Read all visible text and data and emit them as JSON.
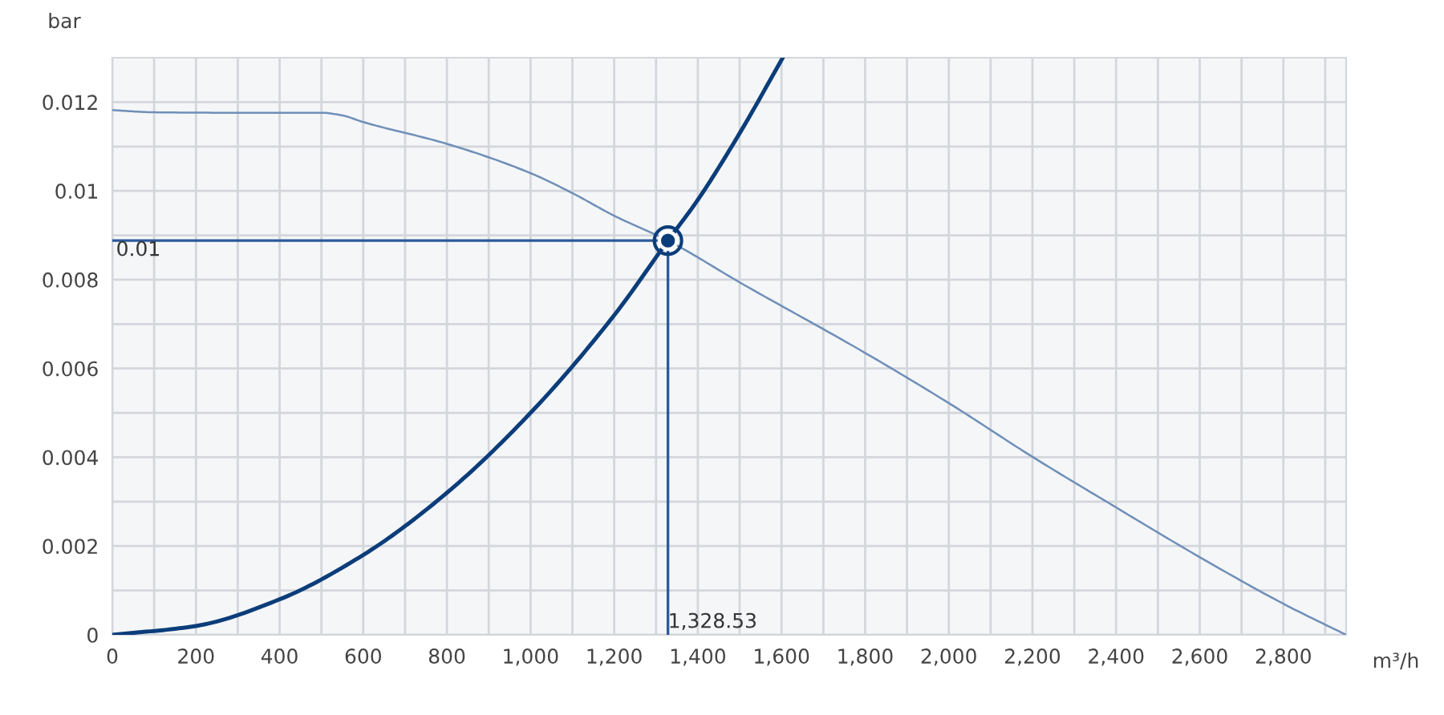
{
  "chart_data": {
    "type": "line",
    "ylabel": "bar",
    "xlabel": "m³/h",
    "grid": true,
    "xlim": [
      0,
      2950
    ],
    "ylim": [
      0,
      0.013
    ],
    "xticks": [
      0,
      {
        "value": 100,
        "label": null
      },
      200,
      {
        "value": 300,
        "label": null
      },
      400,
      {
        "value": 500,
        "label": null
      },
      600,
      {
        "value": 700,
        "label": null
      },
      800,
      {
        "value": 900,
        "label": null
      },
      {
        "value": 1000,
        "label": "1,000"
      },
      {
        "value": 1100,
        "label": null
      },
      {
        "value": 1200,
        "label": "1,200"
      },
      {
        "value": 1300,
        "label": null
      },
      {
        "value": 1400,
        "label": "1,400"
      },
      {
        "value": 1500,
        "label": null
      },
      {
        "value": 1600,
        "label": "1,600"
      },
      {
        "value": 1700,
        "label": null
      },
      {
        "value": 1800,
        "label": "1,800"
      },
      {
        "value": 1900,
        "label": null
      },
      {
        "value": 2000,
        "label": "2,000"
      },
      {
        "value": 2100,
        "label": null
      },
      {
        "value": 2200,
        "label": "2,200"
      },
      {
        "value": 2300,
        "label": null
      },
      {
        "value": 2400,
        "label": "2,400"
      },
      {
        "value": 2500,
        "label": null
      },
      {
        "value": 2600,
        "label": "2,600"
      },
      {
        "value": 2700,
        "label": null
      },
      {
        "value": 2800,
        "label": "2,800"
      },
      {
        "value": 2900,
        "label": null
      }
    ],
    "yticks": [
      0,
      {
        "value": 0.001,
        "label": null
      },
      0.002,
      {
        "value": 0.003,
        "label": null
      },
      0.004,
      {
        "value": 0.005,
        "label": null
      },
      0.006,
      {
        "value": 0.007,
        "label": null
      },
      0.008,
      {
        "value": 0.009,
        "label": null
      },
      0.01,
      {
        "value": 0.011,
        "label": null
      },
      0.012
    ],
    "series": [
      {
        "color": "#6f8fb8",
        "x": [
          0,
          100,
          300,
          500,
          550,
          600,
          800,
          1000,
          1100,
          1200,
          1328.53,
          1500,
          1800,
          2000,
          2200,
          2400,
          2600,
          2800,
          2950
        ],
        "values": [
          0.01182,
          0.01177,
          0.01176,
          0.01176,
          0.0117,
          0.01155,
          0.01106,
          0.0104,
          0.00995,
          0.00944,
          0.00888,
          0.00794,
          0.00635,
          0.00522,
          0.00401,
          0.00287,
          0.00175,
          0.0007,
          0
        ]
      },
      {
        "color": "#0b3d7a",
        "x": [
          0,
          200,
          400,
          600,
          800,
          1000,
          1200,
          1328.53,
          1400,
          1500,
          1603
        ],
        "values": [
          0,
          0.0002,
          0.0008,
          0.0018,
          0.0032,
          0.005,
          0.0072,
          0.00888,
          0.0098,
          0.0113,
          0.013
        ]
      },
      {
        "type": "scatter",
        "color": "#0b3d7a",
        "marker": "circle",
        "x": [
          1328.53
        ],
        "values": [
          0.00888
        ]
      }
    ],
    "ref_lines": [
      {
        "axis": "y",
        "value": 0.00888,
        "label": "0.01",
        "color": "#2a5a9a"
      },
      {
        "axis": "x",
        "value": 1328.53,
        "label": "1,328.53",
        "color": "#2a5a9a"
      }
    ]
  }
}
